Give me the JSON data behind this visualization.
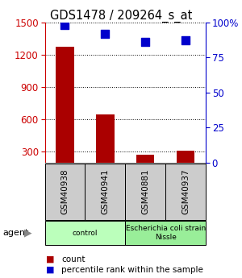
{
  "title": "GDS1478 / 209264_s_at",
  "samples": [
    "GSM40938",
    "GSM40941",
    "GSM40881",
    "GSM40937"
  ],
  "counts": [
    1270,
    650,
    270,
    310
  ],
  "percentile_ranks": [
    98,
    92,
    86,
    87
  ],
  "ylim_left": [
    200,
    1500
  ],
  "ylim_right": [
    0,
    100
  ],
  "yticks_left": [
    300,
    600,
    900,
    1200,
    1500
  ],
  "yticks_right": [
    0,
    25,
    50,
    75,
    100
  ],
  "yticklabels_right": [
    "0",
    "25",
    "50",
    "75",
    "100%"
  ],
  "bar_color": "#aa0000",
  "dot_color": "#0000cc",
  "grid_color": "#000000",
  "agent_groups": [
    {
      "label": "control",
      "samples": [
        0,
        1
      ],
      "color": "#bbffbb"
    },
    {
      "label": "Escherichia coli strain\nNissle",
      "samples": [
        2,
        3
      ],
      "color": "#99ee99"
    }
  ],
  "sample_box_color": "#cccccc",
  "left_axis_color": "#cc0000",
  "right_axis_color": "#0000cc",
  "bar_width": 0.45,
  "dot_size": 45,
  "background_color": "#ffffff",
  "title_fontsize": 10.5,
  "tick_fontsize": 8.5,
  "legend_fontsize": 7.5,
  "sample_fontsize": 7.5
}
